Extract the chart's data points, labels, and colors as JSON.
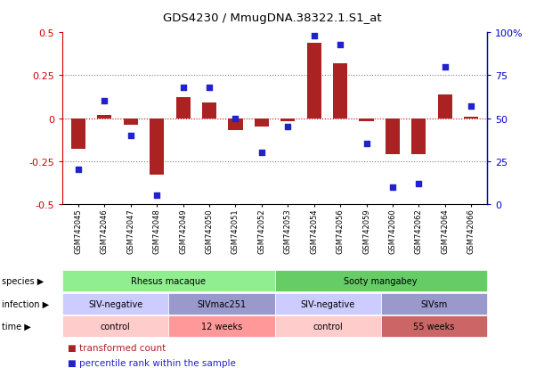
{
  "title": "GDS4230 / MmugDNA.38322.1.S1_at",
  "samples": [
    "GSM742045",
    "GSM742046",
    "GSM742047",
    "GSM742048",
    "GSM742049",
    "GSM742050",
    "GSM742051",
    "GSM742052",
    "GSM742053",
    "GSM742054",
    "GSM742056",
    "GSM742059",
    "GSM742060",
    "GSM742062",
    "GSM742064",
    "GSM742066"
  ],
  "transformed_count": [
    -0.18,
    0.02,
    -0.04,
    -0.33,
    0.12,
    0.09,
    -0.07,
    -0.05,
    -0.02,
    0.44,
    0.32,
    -0.02,
    -0.21,
    -0.21,
    0.14,
    0.01
  ],
  "percentile_rank": [
    20,
    60,
    40,
    5,
    68,
    68,
    50,
    30,
    45,
    98,
    93,
    35,
    10,
    12,
    80,
    57
  ],
  "species": [
    {
      "label": "Rhesus macaque",
      "start": 0,
      "end": 8,
      "color": "#90EE90"
    },
    {
      "label": "Sooty mangabey",
      "start": 8,
      "end": 16,
      "color": "#66CC66"
    }
  ],
  "infection": [
    {
      "label": "SIV-negative",
      "start": 0,
      "end": 4,
      "color": "#CCCCFF"
    },
    {
      "label": "SIVmac251",
      "start": 4,
      "end": 8,
      "color": "#9999CC"
    },
    {
      "label": "SIV-negative",
      "start": 8,
      "end": 12,
      "color": "#CCCCFF"
    },
    {
      "label": "SIVsm",
      "start": 12,
      "end": 16,
      "color": "#9999CC"
    }
  ],
  "time": [
    {
      "label": "control",
      "start": 0,
      "end": 4,
      "color": "#FFCCCC"
    },
    {
      "label": "12 weeks",
      "start": 4,
      "end": 8,
      "color": "#FF9999"
    },
    {
      "label": "control",
      "start": 8,
      "end": 12,
      "color": "#FFCCCC"
    },
    {
      "label": "55 weeks",
      "start": 12,
      "end": 16,
      "color": "#CC6666"
    }
  ],
  "bar_color": "#AA2222",
  "dot_color": "#2222CC",
  "ylim": [
    -0.5,
    0.5
  ],
  "y2lim": [
    0,
    100
  ],
  "yticks": [
    -0.5,
    -0.25,
    0,
    0.25,
    0.5
  ],
  "ytick_labels": [
    "-0.5",
    "-0.25",
    "0",
    "0.25",
    "0.5"
  ],
  "y2ticks": [
    0,
    25,
    50,
    75,
    100
  ],
  "y2tick_labels": [
    "0",
    "25",
    "50",
    "75",
    "100%"
  ],
  "hlines": [
    0.25,
    0,
    -0.25
  ],
  "legend_items": [
    {
      "color": "#AA2222",
      "label": "transformed count"
    },
    {
      "color": "#2222CC",
      "label": "percentile rank within the sample"
    }
  ]
}
